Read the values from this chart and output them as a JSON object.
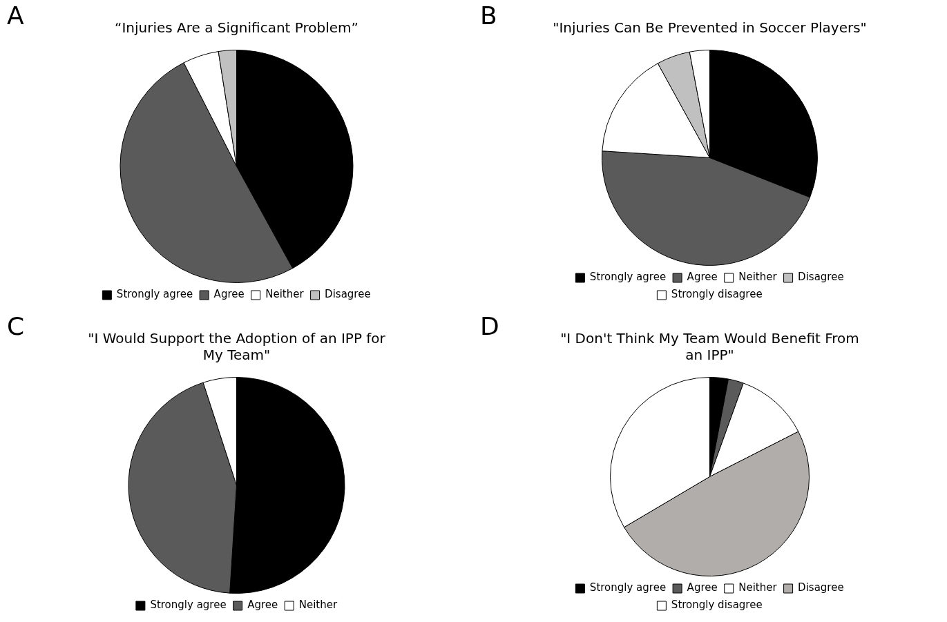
{
  "chart_data": [
    {
      "type": "pie",
      "title": "“Injuries Are a Significant Problem”",
      "annotations": [
        "A"
      ],
      "categories": [
        "Strongly agree",
        "Agree",
        "Neither",
        "Disagree"
      ],
      "values": [
        42,
        50.5,
        5,
        2.5
      ],
      "colors": [
        "#000000",
        "#5a5a5a",
        "#ffffff",
        "#c0c0c0"
      ],
      "legend": "bottom"
    },
    {
      "type": "pie",
      "title": "\"Injuries Can Be Prevented in Soccer Players\"",
      "annotations": [
        "B"
      ],
      "categories": [
        "Strongly agree",
        "Agree",
        "Neither",
        "Disagree",
        "Strongly disagree"
      ],
      "values": [
        31,
        45,
        16,
        5,
        3
      ],
      "colors": [
        "#000000",
        "#5a5a5a",
        "#ffffff",
        "#c0c0c0",
        "#ffffff"
      ],
      "legend": "bottom"
    },
    {
      "type": "pie",
      "title": "\"I Would Support the Adoption of an IPP for My Team\"",
      "annotations": [
        "C"
      ],
      "categories": [
        "Strongly agree",
        "Agree",
        "Neither"
      ],
      "values": [
        51,
        44,
        5
      ],
      "colors": [
        "#000000",
        "#5a5a5a",
        "#ffffff"
      ],
      "legend": "bottom"
    },
    {
      "type": "pie",
      "title": "\"I Don't Think My Team Would Benefit From an IPP\"",
      "annotations": [
        "D"
      ],
      "categories": [
        "Strongly agree",
        "Agree",
        "Neither",
        "Disagree",
        "Strongly disagree"
      ],
      "values": [
        3,
        2.5,
        12,
        49,
        33.5
      ],
      "colors": [
        "#000000",
        "#5a5a5a",
        "#ffffff",
        "#b0adab",
        "#ffffff"
      ],
      "legend": "bottom"
    }
  ]
}
